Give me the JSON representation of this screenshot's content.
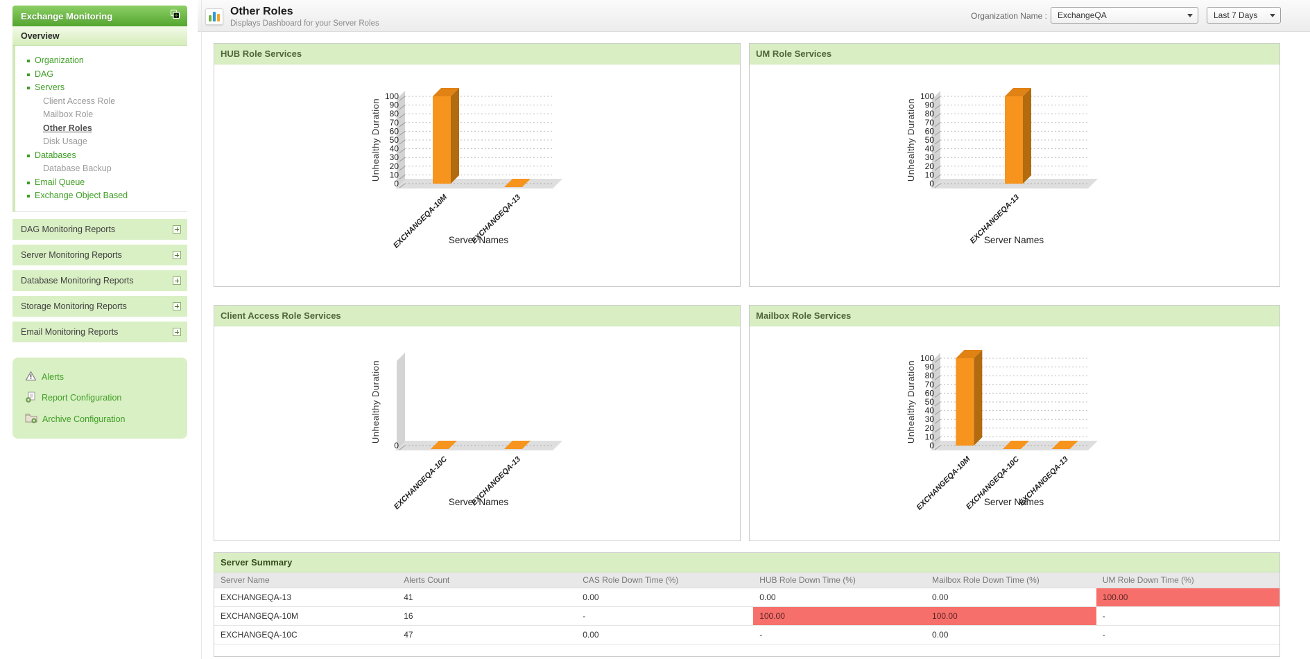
{
  "sidebar": {
    "title": "Exchange Monitoring",
    "overview_label": "Overview",
    "menu": [
      {
        "label": "Organization",
        "type": "main"
      },
      {
        "label": "DAG",
        "type": "main"
      },
      {
        "label": "Servers",
        "type": "main"
      },
      {
        "label": "Client Access Role",
        "type": "sub"
      },
      {
        "label": "Mailbox Role",
        "type": "sub"
      },
      {
        "label": "Other Roles",
        "type": "sub",
        "active": true
      },
      {
        "label": "Disk Usage",
        "type": "sub"
      },
      {
        "label": "Databases",
        "type": "main"
      },
      {
        "label": "Database Backup",
        "type": "sub"
      },
      {
        "label": "Email Queue",
        "type": "main"
      },
      {
        "label": "Exchange Object Based",
        "type": "main"
      }
    ],
    "report_sections": [
      "DAG Monitoring Reports",
      "Server Monitoring Reports",
      "Database Monitoring Reports",
      "Storage Monitoring Reports",
      "Email Monitoring Reports"
    ],
    "footer_links": [
      {
        "label": "Alerts",
        "icon": "alert-icon"
      },
      {
        "label": "Report Configuration",
        "icon": "report-config-icon"
      },
      {
        "label": "Archive Configuration",
        "icon": "archive-config-icon"
      }
    ]
  },
  "header": {
    "title": "Other Roles",
    "subtitle": "Displays Dashboard for your Server Roles",
    "org_label": "Organization Name :",
    "org_value": "ExchangeQA",
    "period_value": "Last 7 Days"
  },
  "chart_data": [
    {
      "type": "bar",
      "title": "HUB Role Services",
      "xlabel": "Server Names",
      "ylabel": "Unhealthy Duration",
      "ylim": [
        0,
        100
      ],
      "ytick_step": 10,
      "zero_axis_only": false,
      "grid": "dotted",
      "legend": "none",
      "categories": [
        "EXCHANGEQA-10M",
        "EXCHANGEQA-13"
      ],
      "values": [
        100,
        0
      ]
    },
    {
      "type": "bar",
      "title": "UM Role Services",
      "xlabel": "Server Names",
      "ylabel": "Unhealthy Duration",
      "ylim": [
        0,
        100
      ],
      "ytick_step": 10,
      "zero_axis_only": false,
      "grid": "dotted",
      "legend": "none",
      "categories": [
        "EXCHANGEQA-13"
      ],
      "values": [
        100
      ]
    },
    {
      "type": "bar",
      "title": "Client Access Role Services",
      "xlabel": "Server Names",
      "ylabel": "Unhealthy Duration",
      "ylim": [
        0,
        100
      ],
      "ytick_step": 10,
      "zero_axis_only": true,
      "grid": "dotted",
      "legend": "none",
      "categories": [
        "EXCHANGEQA-10C",
        "EXCHANGEQA-13"
      ],
      "values": [
        0,
        0
      ]
    },
    {
      "type": "bar",
      "title": "Mailbox Role Services",
      "xlabel": "Server Names",
      "ylabel": "Unhealthy Duration",
      "ylim": [
        0,
        100
      ],
      "ytick_step": 10,
      "zero_axis_only": false,
      "grid": "dotted",
      "legend": "none",
      "categories": [
        "EXCHANGEQA-10M",
        "EXCHANGEQA-10C",
        "EXCHANGEQA-13"
      ],
      "values": [
        100,
        0,
        0
      ]
    }
  ],
  "table": {
    "title": "Server Summary",
    "columns": [
      "Server Name",
      "Alerts Count",
      "CAS Role Down Time (%)",
      "HUB Role Down Time (%)",
      "Mailbox Role Down Time (%)",
      "UM Role Down Time (%)"
    ],
    "rows": [
      {
        "cells": [
          "EXCHANGEQA-13",
          "41",
          "0.00",
          "0.00",
          "0.00",
          "100.00"
        ],
        "highlight": [
          5
        ]
      },
      {
        "cells": [
          "EXCHANGEQA-10M",
          "16",
          "-",
          "100.00",
          "100.00",
          "-"
        ],
        "highlight": [
          3,
          4
        ]
      },
      {
        "cells": [
          "EXCHANGEQA-10C",
          "47",
          "0.00",
          "-",
          "0.00",
          "-"
        ],
        "highlight": []
      }
    ]
  },
  "colors": {
    "bar_front": "#F7941E",
    "bar_side": "#B26B0E",
    "bar_top": "#E08214",
    "alert_cell_bg": "#F76F6B",
    "alert_cell_text": "#5A2525",
    "sidebar_green": "#54A52F",
    "panel_header_bg": "#D9EFC3"
  }
}
